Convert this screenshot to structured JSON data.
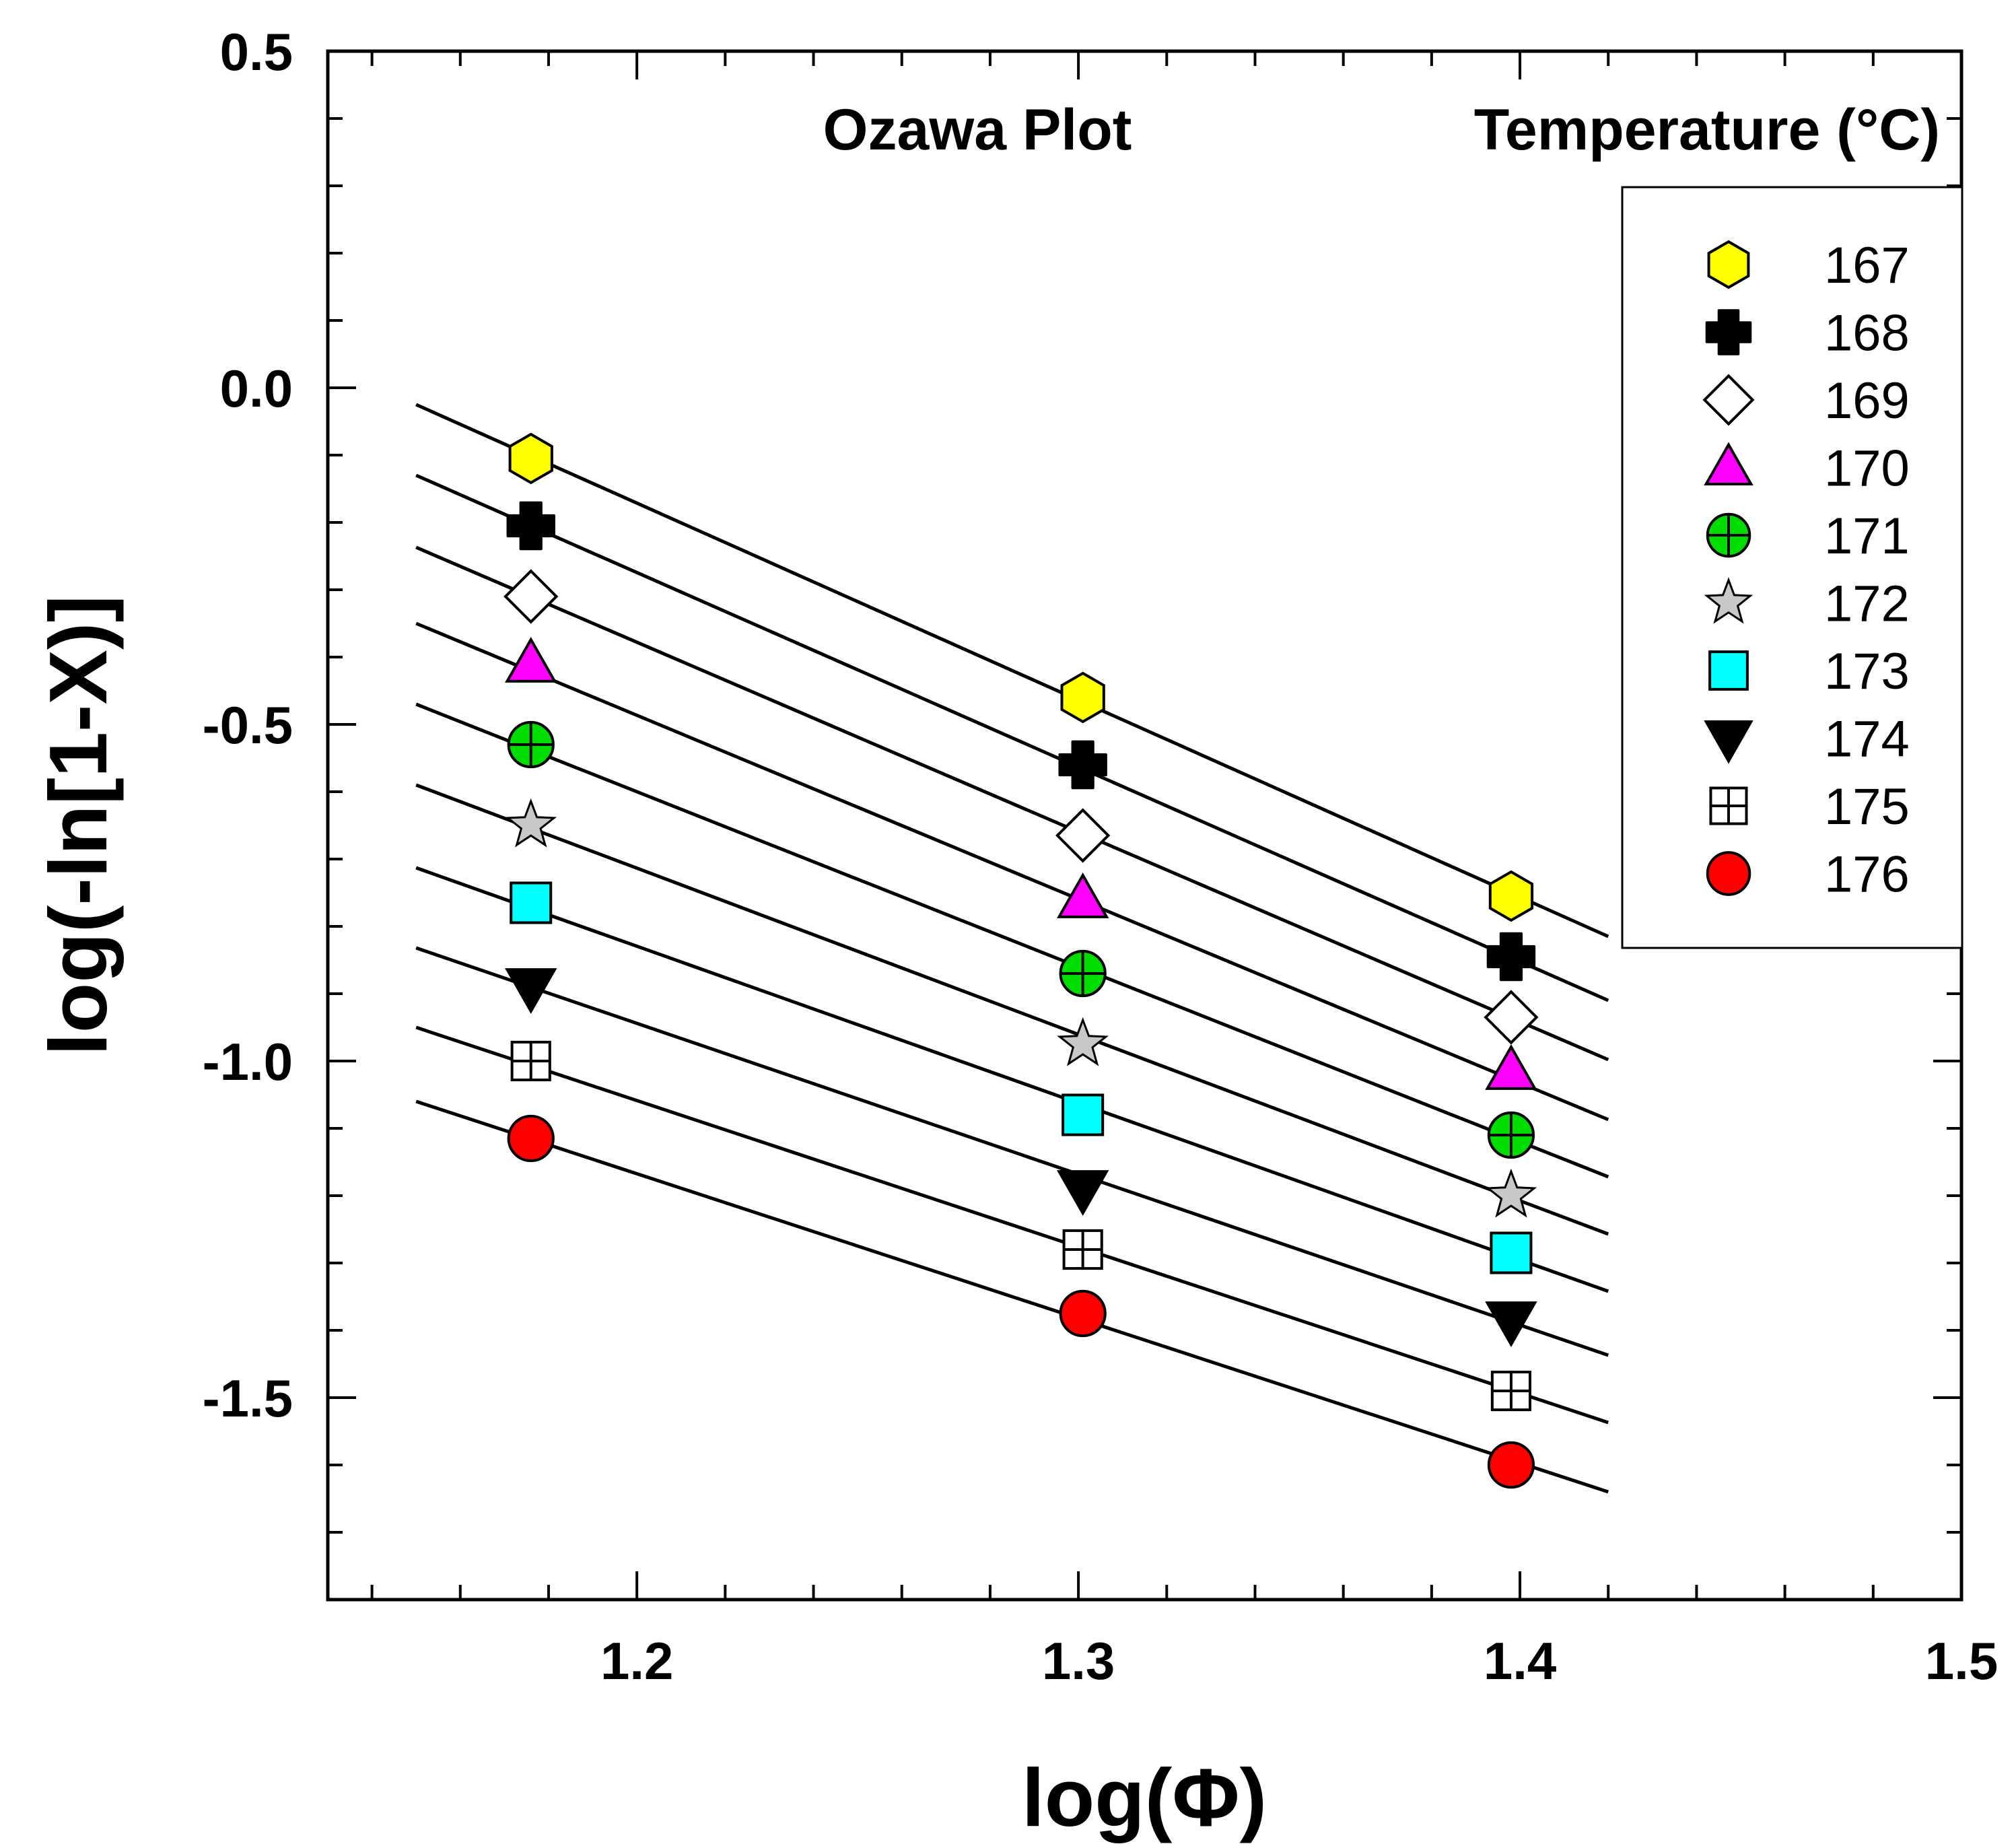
{
  "chart_data": {
    "type": "scatter",
    "title": "Ozawa Plot",
    "xlabel": "log(Φ)",
    "ylabel": "log(-ln[1-X)]",
    "xlim": [
      1.13,
      1.5
    ],
    "ylim": [
      -1.8,
      0.5
    ],
    "x_ticks": [
      {
        "value": 1.2,
        "label": "1.2"
      },
      {
        "value": 1.3,
        "label": "1.3"
      },
      {
        "value": 1.4,
        "label": "1.4"
      },
      {
        "value": 1.5,
        "label": "1.5"
      }
    ],
    "y_ticks": [
      {
        "value": 0.5,
        "label": "0.5"
      },
      {
        "value": 0.0,
        "label": "0.0"
      },
      {
        "value": -0.5,
        "label": "-0.5"
      },
      {
        "value": -1.0,
        "label": "-1.0"
      },
      {
        "value": -1.5,
        "label": "-1.5"
      }
    ],
    "grid": false,
    "legend_title": "Temperature (°C)",
    "legend_position": "top-right",
    "x": [
      1.176,
      1.301,
      1.398
    ],
    "fit_x_range": [
      1.15,
      1.42
    ],
    "series": [
      {
        "name": "167",
        "marker": "hexagon",
        "color": "#ffff00",
        "values": [
          -0.105,
          -0.46,
          -0.755
        ],
        "fit": [
          -0.025,
          -0.815
        ]
      },
      {
        "name": "168",
        "marker": "plus-filled",
        "color": "#000000",
        "values": [
          -0.205,
          -0.56,
          -0.845
        ],
        "fit": [
          -0.13,
          -0.91
        ]
      },
      {
        "name": "169",
        "marker": "diamond",
        "color": "#ffffff",
        "values": [
          -0.31,
          -0.665,
          -0.935
        ],
        "fit": [
          -0.237,
          -0.998
        ]
      },
      {
        "name": "170",
        "marker": "triangle-up",
        "color": "#ff00ff",
        "values": [
          -0.41,
          -0.76,
          -1.015
        ],
        "fit": [
          -0.35,
          -1.087
        ]
      },
      {
        "name": "171",
        "marker": "circle-cross",
        "color": "#00dd00",
        "values": [
          -0.53,
          -0.87,
          -1.11
        ],
        "fit": [
          -0.47,
          -1.172
        ]
      },
      {
        "name": "172",
        "marker": "star",
        "color": "#c8c8c8",
        "values": [
          -0.65,
          -0.975,
          -1.2
        ],
        "fit": [
          -0.59,
          -1.257
        ]
      },
      {
        "name": "173",
        "marker": "square",
        "color": "#00ffff",
        "values": [
          -0.765,
          -1.08,
          -1.285
        ],
        "fit": [
          -0.713,
          -1.342
        ]
      },
      {
        "name": "174",
        "marker": "triangle-down",
        "color": "#000000",
        "values": [
          -0.89,
          -1.19,
          -1.385
        ],
        "fit": [
          -0.832,
          -1.437
        ]
      },
      {
        "name": "175",
        "marker": "square-cross",
        "color": "#ffffff",
        "values": [
          -1.0,
          -1.28,
          -1.49
        ],
        "fit": [
          -0.95,
          -1.537
        ]
      },
      {
        "name": "176",
        "marker": "circle",
        "color": "#ff0000",
        "values": [
          -1.115,
          -1.375,
          -1.6
        ],
        "fit": [
          -1.06,
          -1.64
        ]
      }
    ]
  }
}
